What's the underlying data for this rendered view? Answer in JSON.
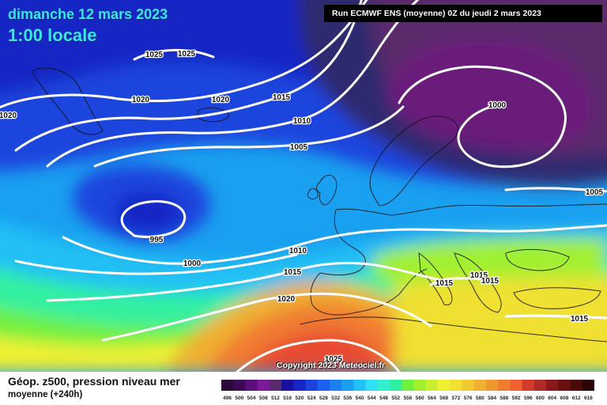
{
  "header": {
    "date": "dimanche 12 mars 2023",
    "local_time": "1:00 locale",
    "run_info": "Run ECMWF ENS (moyenne) 0Z du jeudi 2 mars 2023"
  },
  "footer": {
    "copyright": "Copyright 2023 Meteociel.fr",
    "legend_title": "Géop. z500, pression niveau mer",
    "legend_subtitle": "moyenne   (+240h)"
  },
  "colors": {
    "land_outline": "#111111",
    "isobar": "#ffffff",
    "bands": [
      "#2a0a3a",
      "#3d0a55",
      "#5a0f7a",
      "#7a1a9a",
      "#5a2a6a",
      "#6a2a8a",
      "#1a0fa0",
      "#1626c4",
      "#1a44dd",
      "#1a62ee",
      "#1a82f0",
      "#1aa0f0",
      "#22c0f5",
      "#30e0f5",
      "#30f0d0",
      "#30f0a0",
      "#40f070",
      "#70f040",
      "#a0f030",
      "#c8f030",
      "#f0f030",
      "#f0e030",
      "#f0c830",
      "#f0b030",
      "#f09830",
      "#f07c30",
      "#f06030",
      "#e84a30",
      "#d43a2a",
      "#b02a2a",
      "#8a1a1a",
      "#6a1010",
      "#4a0a0a",
      "#2a0505"
    ]
  },
  "legend_scale": [
    "496",
    "500",
    "504",
    "508",
    "512",
    "516",
    "520",
    "524",
    "528",
    "532",
    "536",
    "540",
    "544",
    "548",
    "552",
    "556",
    "560",
    "564",
    "568",
    "572",
    "576",
    "580",
    "584",
    "588",
    "592",
    "596",
    "600",
    "604",
    "608",
    "612",
    "616"
  ],
  "isobar_labels": [
    {
      "text": "1025",
      "id": "isobar-1025-a"
    },
    {
      "text": "1025",
      "id": "isobar-1025-b"
    },
    {
      "text": "1020",
      "id": "isobar-1020-west"
    },
    {
      "text": "1020",
      "id": "isobar-1020-a"
    },
    {
      "text": "1020",
      "id": "isobar-1020-b"
    },
    {
      "text": "1015",
      "id": "isobar-1015-north"
    },
    {
      "text": "1010",
      "id": "isobar-1010-north"
    },
    {
      "text": "1005",
      "id": "isobar-1005-north"
    },
    {
      "text": "1000",
      "id": "isobar-1000-scandinavia"
    },
    {
      "text": "1005",
      "id": "isobar-1005-east"
    },
    {
      "text": "995",
      "id": "isobar-995-low"
    },
    {
      "text": "1000",
      "id": "isobar-1000-atlantic"
    },
    {
      "text": "1010",
      "id": "isobar-1010-biscay"
    },
    {
      "text": "1015",
      "id": "isobar-1015-iberia"
    },
    {
      "text": "1020",
      "id": "isobar-1020-south"
    },
    {
      "text": "1015",
      "id": "isobar-1015-italy"
    },
    {
      "text": "1015",
      "id": "isobar-1015-balkans-a"
    },
    {
      "text": "1015",
      "id": "isobar-1015-balkans-b"
    },
    {
      "text": "1015",
      "id": "isobar-1015-east"
    },
    {
      "text": "1025",
      "id": "isobar-1025-sahara"
    }
  ]
}
